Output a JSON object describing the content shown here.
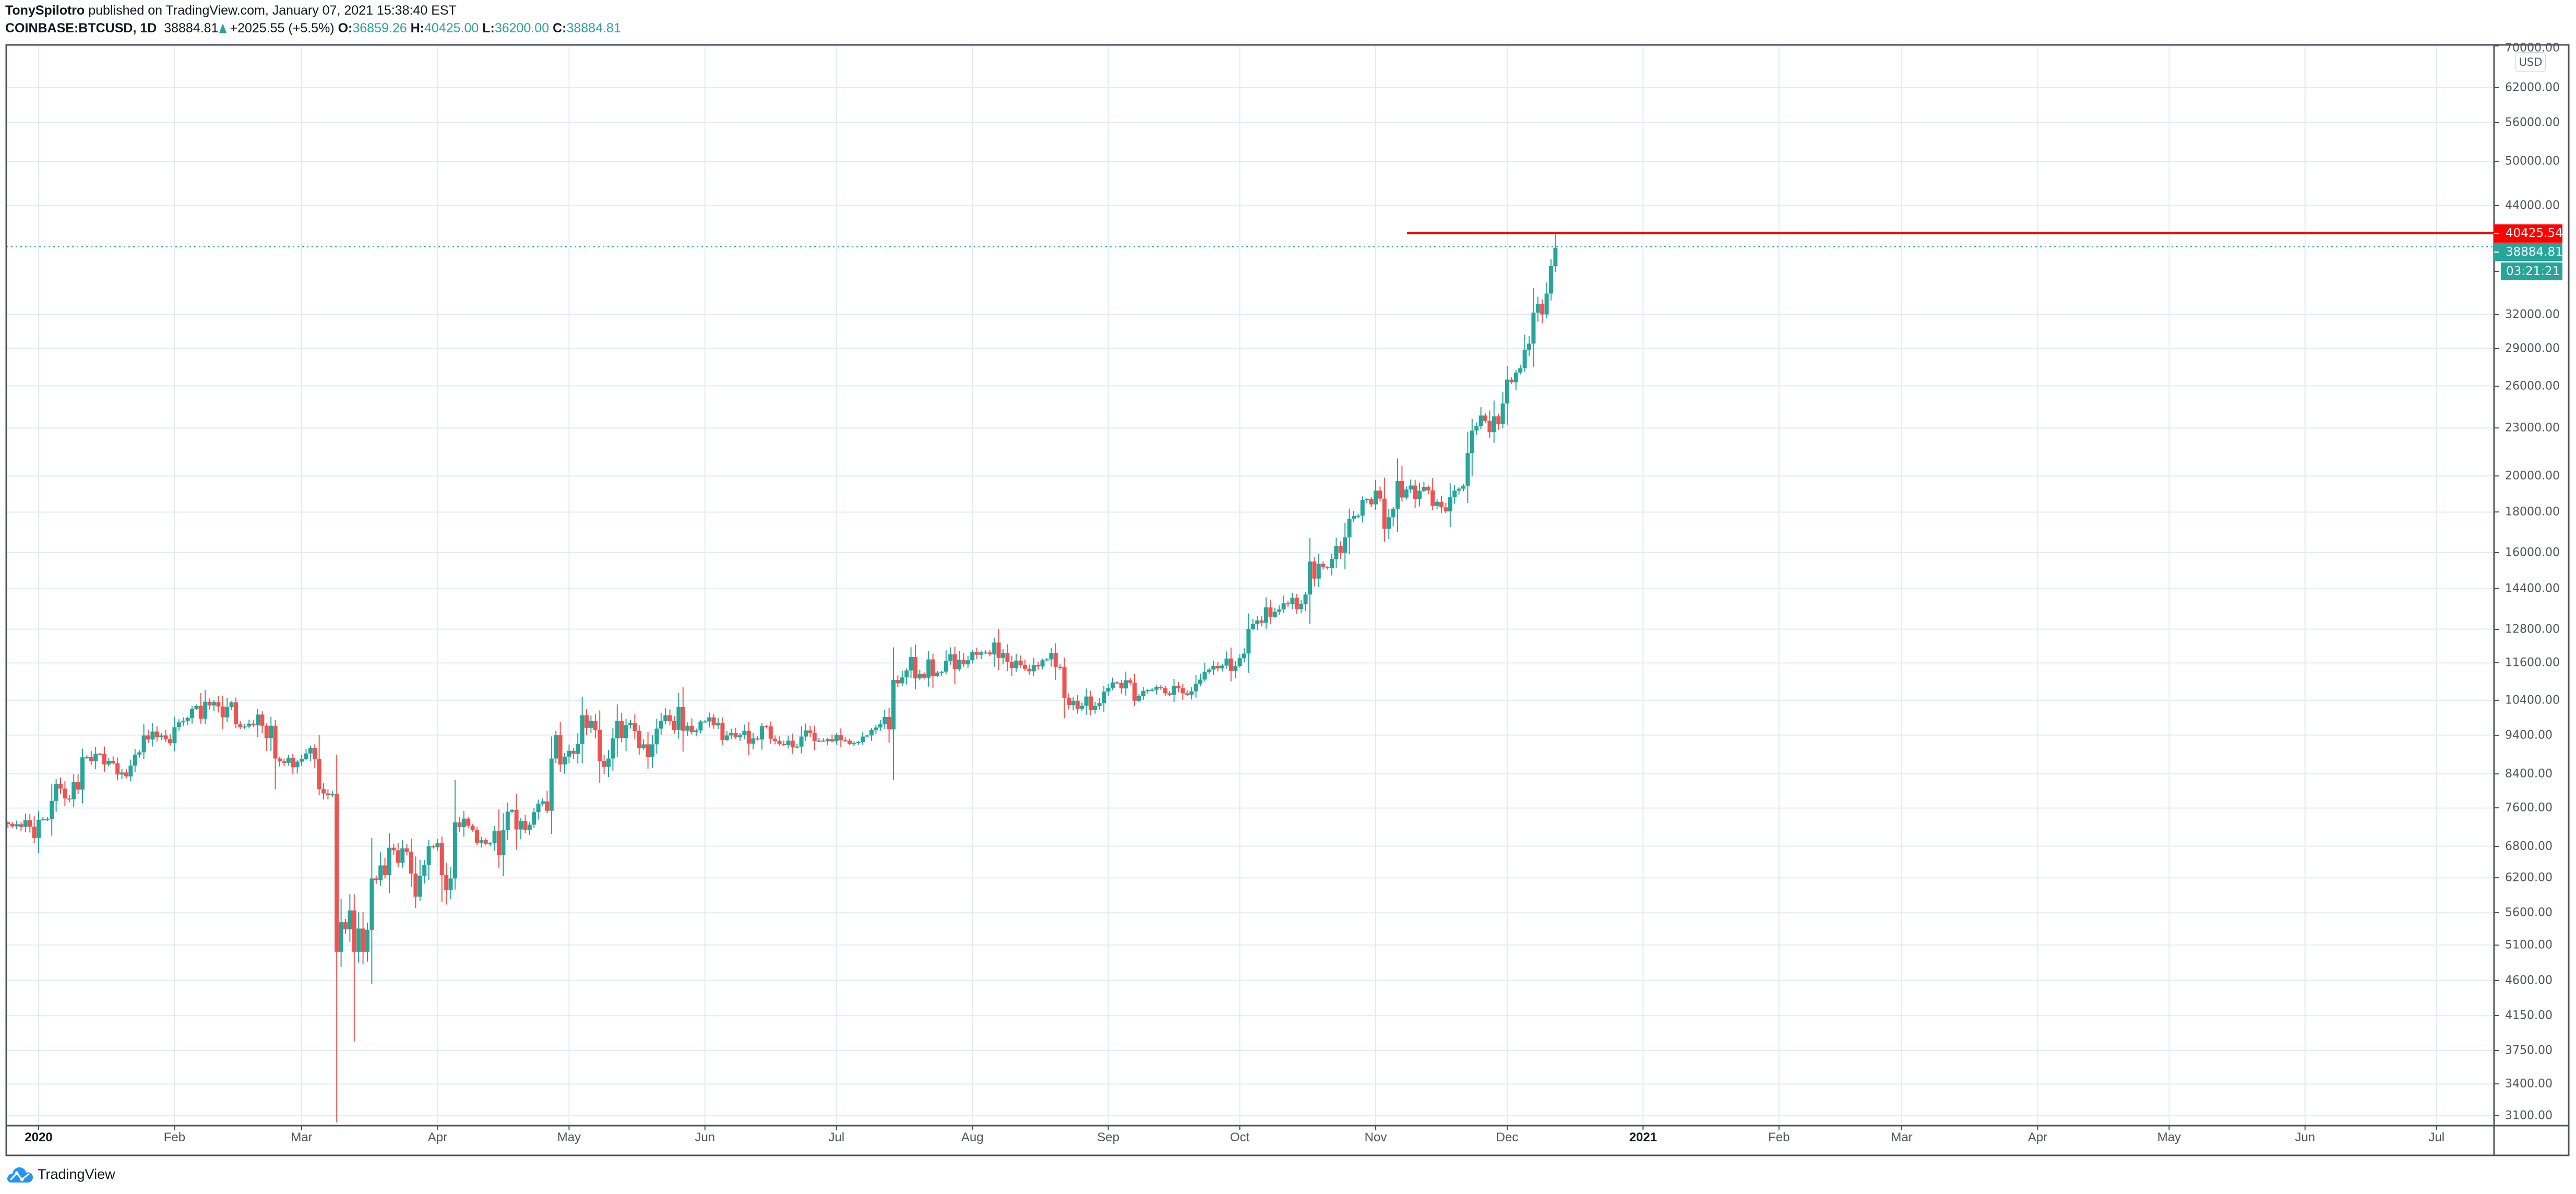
{
  "header": {
    "author": "TonySpilotro",
    "published_text": " published on TradingView.com, January 07, 2021 15:38:40 EST",
    "symbol": "COINBASE:BTCUSD, 1D",
    "last_price": "38884.81",
    "change": "+2025.55 (+5.5%)",
    "open_label": "O:",
    "open": "36859.26",
    "high_label": "H:",
    "high": "40425.00",
    "low_label": "L:",
    "low": "36200.00",
    "close_label": "C:",
    "close": "38884.81"
  },
  "price_axis": {
    "currency": "USD",
    "labels": [
      "70000.00",
      "62000.00",
      "56000.00",
      "50000.00",
      "44000.00",
      "32000.00",
      "29000.00",
      "26000.00",
      "23000.00",
      "20000.00",
      "18000.00",
      "16000.00",
      "14400.00",
      "12800.00",
      "11600.00",
      "10400.00",
      "9400.00",
      "8400.00",
      "7600.00",
      "6800.00",
      "6200.00",
      "5600.00",
      "5100.00",
      "4600.00",
      "4150.00",
      "3750.00",
      "3400.00",
      "3100.00"
    ],
    "horizontal_line_label": "40425.54",
    "last_price_label": "38884.81",
    "countdown_label": "03:21:21"
  },
  "time_axis": {
    "labels": [
      "2020",
      "Feb",
      "Mar",
      "Apr",
      "May",
      "Jun",
      "Jul",
      "Aug",
      "Sep",
      "Oct",
      "Nov",
      "Dec",
      "2021",
      "Feb",
      "Mar",
      "Apr",
      "May",
      "Jun",
      "Jul"
    ]
  },
  "footer": {
    "logo_text": "TradingView"
  },
  "colors": {
    "up": "#26a69a",
    "down": "#ef5350",
    "grid": "#e1ecf2",
    "axis": "#50535e",
    "hline": "#ff0000",
    "logo": "#2196f3"
  },
  "chart_data": {
    "type": "candlestick",
    "title": "COINBASE:BTCUSD, 1D",
    "xlabel": "",
    "ylabel": "USD",
    "y_scale": "log",
    "ylim": [
      3000,
      72000
    ],
    "x_range": [
      "2019-12-25",
      "2021-07-31"
    ],
    "grid": true,
    "x_ticks": [
      "2020",
      "Feb",
      "Mar",
      "Apr",
      "May",
      "Jun",
      "Jul",
      "Aug",
      "Sep",
      "Oct",
      "Nov",
      "Dec",
      "2021",
      "Feb",
      "Mar",
      "Apr",
      "May",
      "Jun",
      "Jul"
    ],
    "y_ticks": [
      70000,
      62000,
      56000,
      50000,
      44000,
      32000,
      29000,
      26000,
      23000,
      20000,
      18000,
      16000,
      14400,
      12800,
      11600,
      10400,
      9400,
      8400,
      7600,
      6800,
      6200,
      5600,
      5100,
      4600,
      4150,
      3750,
      3400,
      3100
    ],
    "annotations": [
      {
        "type": "horizontal_line",
        "price": 40425.54,
        "color": "#ff0000",
        "start": "2020-11-08"
      },
      {
        "type": "last_price_line",
        "price": 38884.81,
        "color": "#26a69a",
        "style": "dotted"
      }
    ],
    "last_bar": {
      "date": "2021-01-07",
      "open": 36859.26,
      "high": 40425.0,
      "low": 36200.0,
      "close": 38884.81
    },
    "start_date": "2019-12-25",
    "closes": [
      7255,
      7205,
      7250,
      7195,
      7335,
      7200,
      6965,
      7345,
      7355,
      7355,
      7760,
      8155,
      8045,
      7815,
      7800,
      8195,
      8020,
      8810,
      8820,
      8720,
      8905,
      8900,
      8630,
      8720,
      8660,
      8380,
      8430,
      8335,
      8600,
      8880,
      8940,
      9390,
      9280,
      9500,
      9350,
      9390,
      9290,
      9180,
      9620,
      9755,
      9800,
      9880,
      10150,
      10230,
      9860,
      10360,
      10250,
      10350,
      10220,
      9900,
      10200,
      10340,
      9700,
      9620,
      9640,
      9720,
      9670,
      9980,
      9660,
      9320,
      9660,
      8780,
      8710,
      8670,
      8800,
      8560,
      8700,
      8770,
      8910,
      9060,
      8770,
      8030,
      7930,
      7890,
      7920,
      5000,
      5450,
      5340,
      5640,
      5000,
      5350,
      5000,
      5330,
      6190,
      6160,
      6430,
      6250,
      6770,
      6720,
      6480,
      6760,
      6690,
      6280,
      5870,
      6240,
      6440,
      6800,
      6780,
      6860,
      6250,
      5990,
      6190,
      7290,
      7190,
      7370,
      7220,
      7130,
      6870,
      6920,
      6850,
      6860,
      7110,
      6630,
      7130,
      7520,
      7560,
      7140,
      7320,
      7130,
      7240,
      7510,
      7700,
      7750,
      7540,
      8780,
      9400,
      8630,
      8830,
      8980,
      8900,
      9160,
      9960,
      9600,
      9800,
      9540,
      8720,
      8570,
      8780,
      9310,
      9800,
      9320,
      9680,
      9730,
      9510,
      9050,
      9150,
      8820,
      9150,
      9580,
      9790,
      9960,
      9790,
      9540,
      10200,
      9520,
      9660,
      9480,
      9530,
      9780,
      9780,
      9900,
      9670,
      9740,
      9270,
      9390,
      9460,
      9340,
      9400,
      9520,
      9170,
      9310,
      9280,
      9650,
      9640,
      9300,
      9240,
      9160,
      9130,
      9250,
      9070,
      9090,
      9360,
      9530,
      9460,
      9240,
      9250,
      9240,
      9290,
      9230,
      9400,
      9260,
      9250,
      9160,
      9180,
      9210,
      9360,
      9390,
      9540,
      9610,
      9700,
      9910,
      9560,
      11040,
      10930,
      11120,
      11350,
      11800,
      11090,
      11240,
      11110,
      11720,
      11170,
      11280,
      11310,
      11670,
      11900,
      11390,
      11710,
      11550,
      11690,
      11980,
      11880,
      11960,
      11960,
      11890,
      12310,
      11770,
      11940,
      11630,
      11430,
      11680,
      11530,
      11400,
      11320,
      11530,
      11480,
      11690,
      11720,
      11940,
      11470,
      11460,
      10470,
      10260,
      10390,
      10150,
      10240,
      10520,
      10120,
      10230,
      10320,
      10670,
      10790,
      10960,
      10940,
      10770,
      11030,
      10950,
      10390,
      10530,
      10690,
      10720,
      10730,
      10820,
      10780,
      10620,
      10570,
      10850,
      10780,
      10620,
      10570,
      10680,
      10920,
      11050,
      11300,
      11380,
      11500,
      11420,
      11510,
      11750,
      11330,
      11500,
      11760,
      11920,
      12810,
      12990,
      13130,
      13040,
      13640,
      13270,
      13470,
      13560,
      13800,
      13780,
      14020,
      13570,
      13780,
      14160,
      15590,
      14830,
      15480,
      15330,
      15300,
      15700,
      16310,
      15980,
      16730,
      17660,
      17800,
      17820,
      18650,
      18700,
      18410,
      19170,
      18720,
      17150,
      17730,
      18180,
      19700,
      18780,
      19230,
      19450,
      18710,
      19150,
      19370,
      19180,
      18330,
      18550,
      18250,
      18040,
      18810,
      19170,
      19270,
      19440,
      21380,
      22830,
      23130,
      23850,
      23480,
      22720,
      23800,
      23250,
      24700,
      26480,
      26280,
      27030,
      27380,
      28880,
      29410,
      32190,
      33000,
      32020,
      34030,
      36860,
      38884
    ]
  }
}
